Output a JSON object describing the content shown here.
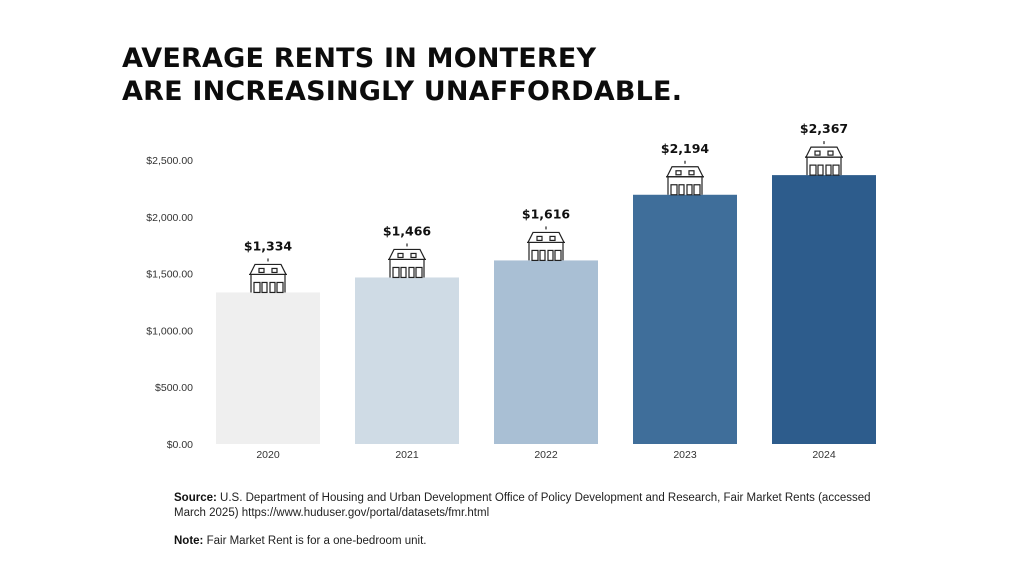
{
  "title": {
    "line1": "AVERAGE RENTS IN MONTEREY",
    "line2": "ARE INCREASINGLY UNAFFORDABLE."
  },
  "chart_data": {
    "type": "bar",
    "categories": [
      "2020",
      "2021",
      "2022",
      "2023",
      "2024"
    ],
    "values": [
      1334,
      1466,
      1616,
      2194,
      2367
    ],
    "data_labels": [
      "$1,334",
      "$1,466",
      "$1,616",
      "$2,194",
      "$2,367"
    ],
    "y_ticks": [
      0,
      500,
      1000,
      1500,
      2000,
      2500
    ],
    "y_tick_labels": [
      "$0.00",
      "$500.00",
      "$1,000.00",
      "$1,500.00",
      "$2,000.00",
      "$2,500.00"
    ],
    "ylim": [
      0,
      2500
    ],
    "bar_colors": [
      "#efefef",
      "#cfdbe5",
      "#a9bfd4",
      "#3f6e9a",
      "#2d5c8c"
    ],
    "marker_icon": "house-icon",
    "grid": false,
    "legend": "none"
  },
  "footer": {
    "source_label": "Source:",
    "source_text": "U.S. Department of Housing and Urban Development Office of Policy Development and Research, Fair Market Rents (accessed March 2025) https://www.huduser.gov/portal/datasets/fmr.html",
    "note_label": "Note:",
    "note_text": "Fair Market Rent is for a one-bedroom unit."
  }
}
